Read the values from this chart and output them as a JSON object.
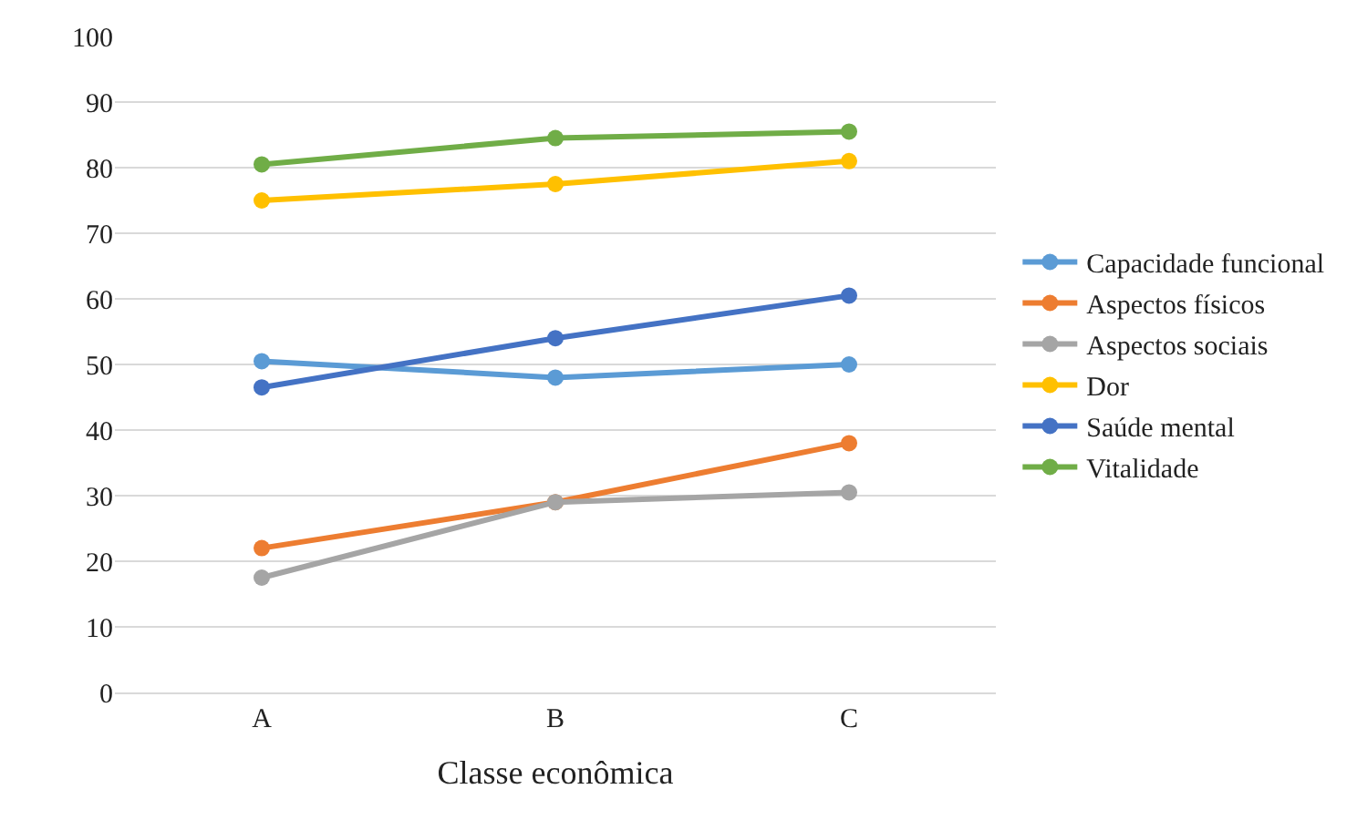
{
  "chart_data": {
    "type": "line",
    "xlabel": "Classe econômica",
    "categories": [
      "A",
      "B",
      "C"
    ],
    "series": [
      {
        "name": "Capacidade funcional",
        "color": "#5b9bd5",
        "values": [
          50.5,
          48,
          50
        ]
      },
      {
        "name": "Aspectos físicos",
        "color": "#ed7d31",
        "values": [
          22,
          29,
          38
        ]
      },
      {
        "name": "Aspectos sociais",
        "color": "#a5a5a5",
        "values": [
          17.5,
          29,
          30.5
        ]
      },
      {
        "name": "Dor",
        "color": "#ffc000",
        "values": [
          75,
          77.5,
          81
        ]
      },
      {
        "name": "Saúde mental",
        "color": "#4472c4",
        "values": [
          46.5,
          54,
          60.5
        ]
      },
      {
        "name": "Vitalidade",
        "color": "#70ad47",
        "values": [
          80.5,
          84.5,
          85.5
        ]
      }
    ],
    "ylim": [
      0,
      100
    ],
    "yticks": [
      0,
      10,
      20,
      30,
      40,
      50,
      60,
      70,
      80,
      90,
      100
    ],
    "grid": "y",
    "legend": "right",
    "marker": "circle",
    "line_style": "solid"
  }
}
